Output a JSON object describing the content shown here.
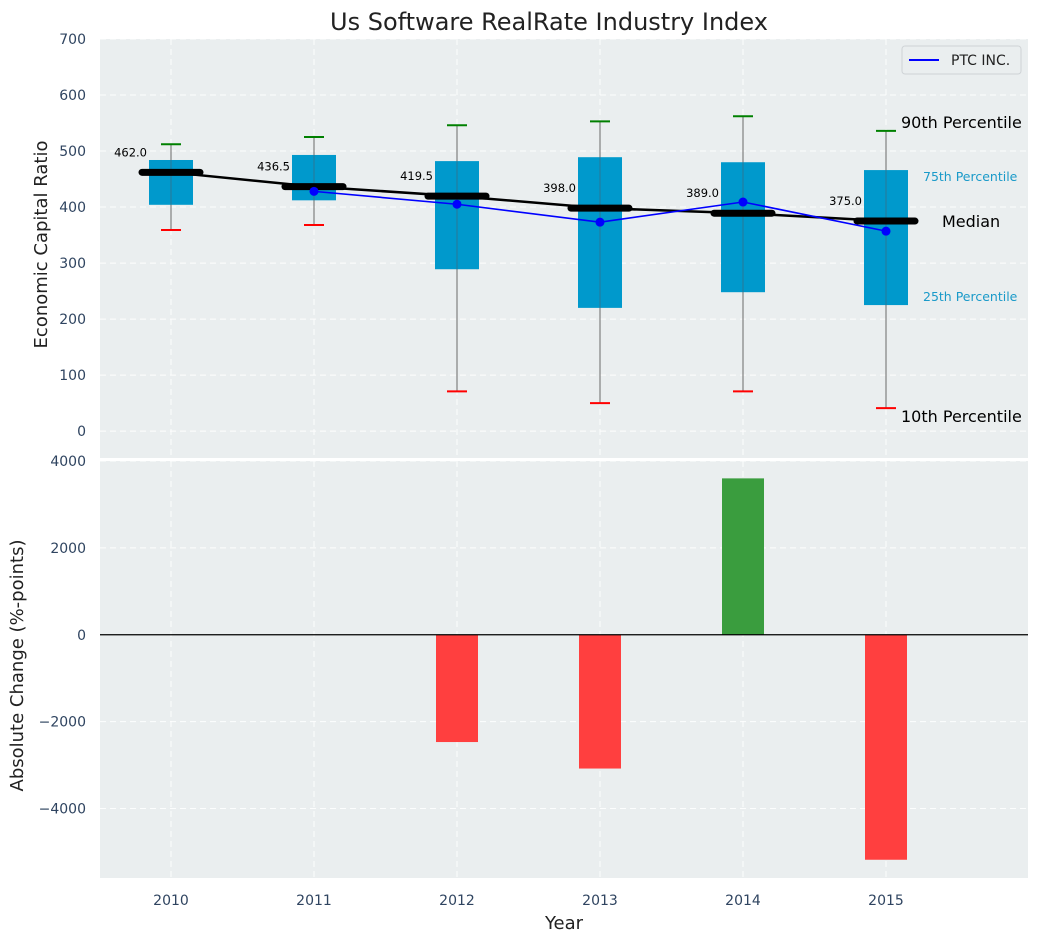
{
  "chart_data": [
    {
      "type": "box",
      "title": "Us Software RealRate Industry Index",
      "xlabel": "",
      "ylabel": "Economic Capital Ratio",
      "ylim": [
        -48,
        700
      ],
      "yticks": [
        0,
        100,
        200,
        300,
        400,
        500,
        600,
        700
      ],
      "ytick_labels": [
        "0",
        "100",
        "200",
        "300",
        "400",
        "500",
        "600",
        "700"
      ],
      "grid": true,
      "categories": [
        "2010",
        "2011",
        "2012",
        "2013",
        "2014",
        "2015"
      ],
      "boxes": [
        {
          "year": "2010",
          "p10": 359,
          "p25": 404,
          "median": 462.0,
          "p75": 484,
          "p90": 512,
          "median_label": "462.0"
        },
        {
          "year": "2011",
          "p10": 368,
          "p25": 412,
          "median": 436.5,
          "p75": 493,
          "p90": 525,
          "median_label": "436.5"
        },
        {
          "year": "2012",
          "p10": 71,
          "p25": 289,
          "median": 419.5,
          "p75": 482,
          "p90": 546,
          "median_label": "419.5"
        },
        {
          "year": "2013",
          "p10": 50,
          "p25": 220,
          "median": 398.0,
          "p75": 489,
          "p90": 553,
          "median_label": "398.0"
        },
        {
          "year": "2014",
          "p10": 71,
          "p25": 248,
          "median": 389.0,
          "p75": 480,
          "p90": 562,
          "median_label": "389.0"
        },
        {
          "year": "2015",
          "p10": 41,
          "p25": 225,
          "median": 375.0,
          "p75": 466,
          "p90": 536,
          "median_label": "375.0"
        }
      ],
      "series": [
        {
          "name": "PTC INC.",
          "color": "#0000ff",
          "x": [
            "2011",
            "2012",
            "2013",
            "2014",
            "2015"
          ],
          "values": [
            428,
            405,
            373,
            409,
            357
          ]
        }
      ],
      "legend": {
        "placement": "top-right",
        "entries": [
          "PTC INC."
        ]
      },
      "annotations": {
        "p90": "90th Percentile",
        "p75": "75th Percentile",
        "median": "Median",
        "p25": "25th Percentile",
        "p10": "10th Percentile"
      },
      "colors": {
        "box": "#0099cc",
        "median_line": "#000000",
        "p90_cap": "#008000",
        "p10_cap": "#ff0000",
        "whisker": "#808080",
        "background": "#eaeeef"
      }
    },
    {
      "type": "bar",
      "xlabel": "Year",
      "ylabel": "Absolute Change (%-points)",
      "ylim": [
        -5600,
        4000
      ],
      "yticks": [
        -4000,
        -2000,
        0,
        2000,
        4000
      ],
      "ytick_labels": [
        "−4000",
        "−2000",
        "0",
        "2000",
        "4000"
      ],
      "grid": true,
      "categories": [
        "2010",
        "2011",
        "2012",
        "2013",
        "2014",
        "2015"
      ],
      "values": [
        0,
        0,
        -2470,
        -3080,
        3600,
        -5180
      ],
      "colors": {
        "positive": "#3a9d3e",
        "negative": "#ff3f3f",
        "zero_line": "#000000"
      }
    }
  ]
}
